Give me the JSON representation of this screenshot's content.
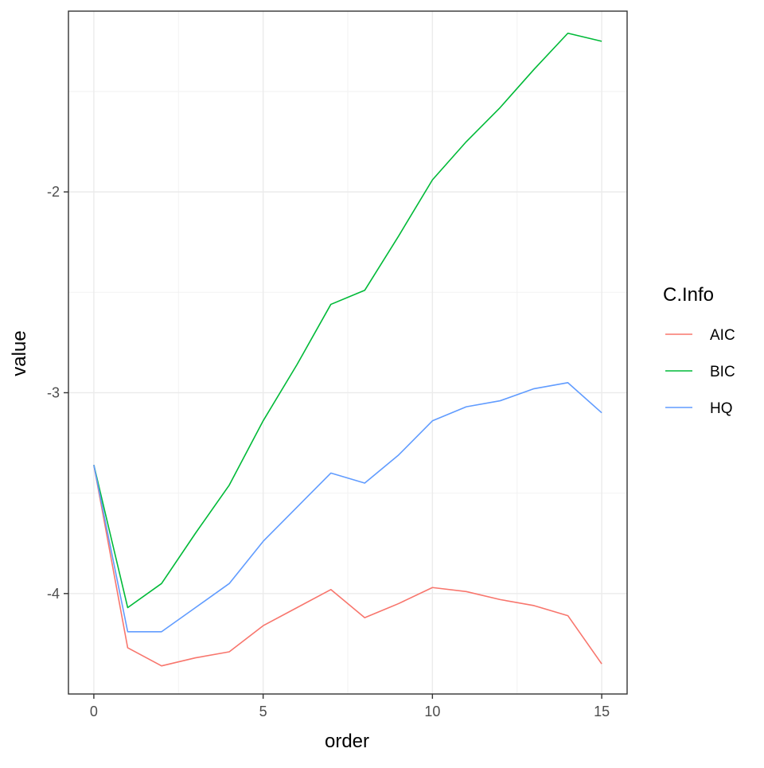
{
  "chart_data": {
    "type": "line",
    "title": "",
    "xlabel": "order",
    "ylabel": "value",
    "xlim": [
      -0.75,
      15.75
    ],
    "ylim": [
      -4.5,
      -1.1
    ],
    "x_ticks": [
      0,
      5,
      10,
      15
    ],
    "x_tick_labels": [
      "0",
      "5",
      "10",
      "15"
    ],
    "x_minor_ticks": [
      2.5,
      7.5,
      12.5
    ],
    "y_ticks": [
      -4,
      -3,
      -2
    ],
    "y_tick_labels": [
      "-4",
      "-3",
      "-2"
    ],
    "y_minor_ticks": [
      -4.5,
      -3.5,
      -2.5,
      -1.5
    ],
    "grid": true,
    "legend_title": "C.Info",
    "legend_position": "right",
    "x": [
      0,
      1,
      2,
      3,
      4,
      5,
      6,
      7,
      8,
      9,
      10,
      11,
      12,
      13,
      14,
      15
    ],
    "series": [
      {
        "name": "AIC",
        "color": "#F8766D",
        "values": [
          -3.36,
          -4.27,
          -4.36,
          -4.32,
          -4.29,
          -4.16,
          -4.07,
          -3.98,
          -4.12,
          -4.05,
          -3.97,
          -3.99,
          -4.03,
          -4.06,
          -4.11,
          -4.35
        ]
      },
      {
        "name": "BIC",
        "color": "#00BA38",
        "values": [
          -3.36,
          -4.07,
          -3.95,
          -3.7,
          -3.46,
          -3.14,
          -2.86,
          -2.56,
          -2.49,
          -2.22,
          -1.94,
          -1.75,
          -1.58,
          -1.39,
          -1.21,
          -1.25
        ]
      },
      {
        "name": "HQ",
        "color": "#619CFF",
        "values": [
          -3.36,
          -4.19,
          -4.19,
          -4.07,
          -3.95,
          -3.74,
          -3.57,
          -3.4,
          -3.45,
          -3.31,
          -3.14,
          -3.07,
          -3.04,
          -2.98,
          -2.95,
          -3.1
        ]
      }
    ]
  }
}
